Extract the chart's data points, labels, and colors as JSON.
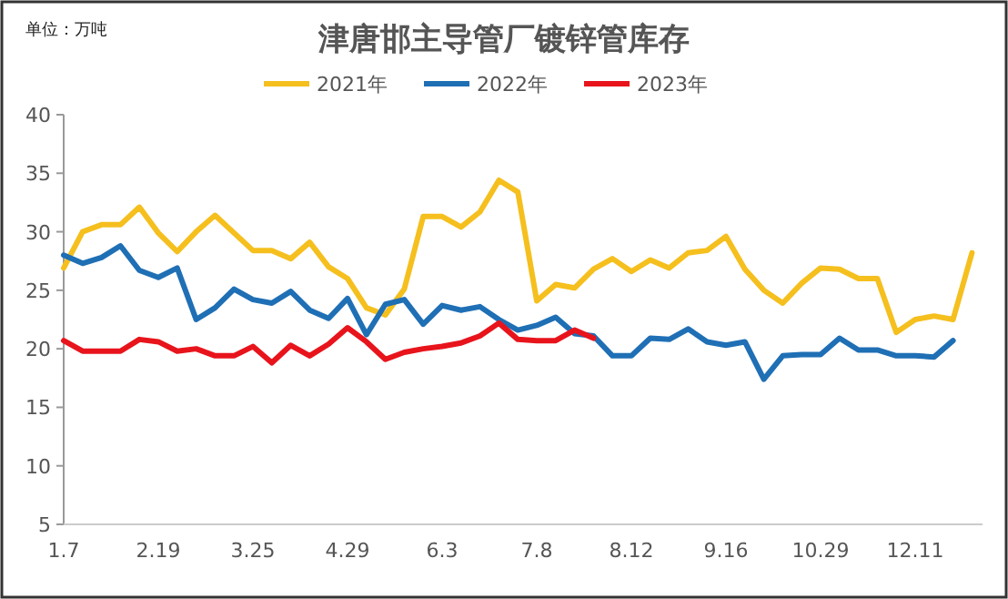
{
  "chart_data": {
    "type": "line",
    "title": "津唐邯主导管厂镀锌管库存",
    "annotations": [
      "单位：万吨"
    ],
    "categories": [
      "1.7",
      null,
      null,
      null,
      null,
      "2.19",
      null,
      null,
      null,
      null,
      "3.25",
      null,
      null,
      null,
      null,
      "4.29",
      null,
      null,
      null,
      null,
      "6.3",
      null,
      null,
      null,
      null,
      "7.8",
      null,
      null,
      null,
      null,
      "8.12",
      null,
      null,
      null,
      null,
      "9.16",
      null,
      null,
      null,
      null,
      "10.29",
      null,
      null,
      null,
      null,
      "12.11",
      null,
      null,
      null
    ],
    "ylim": [
      5,
      40
    ],
    "yticks": [
      5,
      10,
      15,
      20,
      25,
      30,
      35,
      40
    ],
    "grid": false,
    "legend": "top",
    "marker": "none",
    "line_style": "solid",
    "series": [
      {
        "name": "2021年",
        "color": "#f5bf1e",
        "values": [
          26.9,
          30.0,
          30.6,
          30.6,
          32.1,
          29.9,
          28.3,
          30.0,
          31.4,
          29.9,
          28.4,
          28.4,
          27.7,
          29.1,
          27.0,
          26.0,
          23.5,
          22.9,
          25.1,
          31.3,
          31.3,
          30.4,
          31.7,
          34.4,
          33.4,
          24.1,
          25.5,
          25.2,
          26.8,
          27.7,
          26.6,
          27.6,
          26.9,
          28.2,
          28.4,
          29.6,
          26.8,
          25.0,
          23.9,
          25.6,
          26.9,
          26.8,
          26.0,
          26.0,
          21.4,
          22.5,
          22.8,
          22.5,
          28.2
        ]
      },
      {
        "name": "2022年",
        "color": "#1f6fb5",
        "values": [
          28.0,
          27.3,
          27.8,
          28.8,
          26.7,
          26.1,
          26.9,
          22.5,
          23.5,
          25.1,
          24.2,
          23.9,
          24.9,
          23.3,
          22.6,
          24.3,
          21.2,
          23.8,
          24.2,
          22.1,
          23.7,
          23.3,
          23.6,
          22.5,
          21.6,
          22.0,
          22.7,
          21.3,
          21.1,
          19.4,
          19.4,
          20.9,
          20.8,
          21.7,
          20.6,
          20.3,
          20.6,
          17.4,
          19.4,
          19.5,
          19.5,
          20.9,
          19.9,
          19.9,
          19.4,
          19.4,
          19.3,
          20.7,
          null
        ]
      },
      {
        "name": "2023年",
        "color": "#e8141c",
        "values": [
          20.7,
          19.8,
          19.8,
          19.8,
          20.8,
          20.6,
          19.8,
          20.0,
          19.4,
          19.4,
          20.2,
          18.8,
          20.3,
          19.4,
          20.4,
          21.8,
          20.6,
          19.1,
          19.7,
          20.0,
          20.2,
          20.5,
          21.1,
          22.2,
          20.8,
          20.7,
          20.7,
          21.6,
          20.9,
          null,
          null,
          null,
          null,
          null,
          null,
          null,
          null,
          null,
          null,
          null,
          null,
          null,
          null,
          null,
          null,
          null,
          null,
          null,
          null
        ]
      }
    ]
  }
}
